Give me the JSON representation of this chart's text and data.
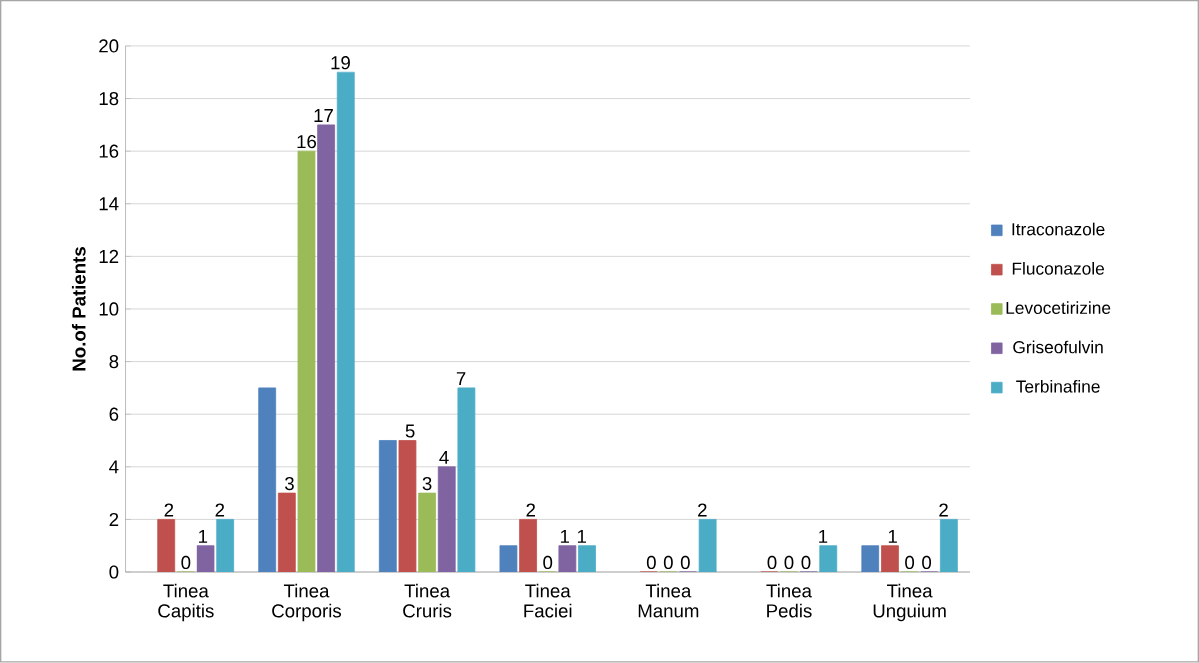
{
  "chart_data": {
    "type": "bar",
    "ylabel": "No.of Patients",
    "categories": [
      "Tinea Capitis",
      "Tinea Corporis",
      "Tinea Cruris",
      "Tinea Faciei",
      "Tinea Manum",
      "Tinea Pedis",
      "Tinea Unguium"
    ],
    "series": [
      {
        "name": "Itraconazole",
        "color": "#4f81bd",
        "values": [
          null,
          7,
          5,
          1,
          null,
          null,
          1
        ]
      },
      {
        "name": "Fluconazole",
        "color": "#c0504d",
        "values": [
          2,
          3,
          5,
          2,
          0,
          0,
          1
        ],
        "value_labels": [
          "2",
          "3",
          "5",
          "2",
          "0",
          "0",
          "1"
        ]
      },
      {
        "name": "Levocetirizine",
        "color": "#9bbb59",
        "values": [
          0,
          16,
          3,
          0,
          0,
          0,
          0
        ],
        "value_labels": [
          "0",
          "16",
          "3",
          "0",
          "0",
          "0",
          "0"
        ]
      },
      {
        "name": "Griseofulvin",
        "color": "#8064a2",
        "values": [
          1,
          17,
          4,
          1,
          0,
          0,
          0
        ],
        "value_labels": [
          "1",
          "17",
          "4",
          "1",
          "0",
          "0",
          "0"
        ]
      },
      {
        "name": "Terbinafine",
        "color": "#4bacc6",
        "values": [
          2,
          19,
          7,
          1,
          2,
          1,
          2
        ],
        "value_labels": [
          "2",
          "19",
          "7",
          "1",
          "2",
          "1",
          "2"
        ]
      }
    ],
    "ylim": [
      0,
      20
    ],
    "yticks": [
      0,
      2,
      4,
      6,
      8,
      10,
      12,
      14,
      16,
      18,
      20
    ],
    "grid": "y",
    "legend": "right"
  }
}
